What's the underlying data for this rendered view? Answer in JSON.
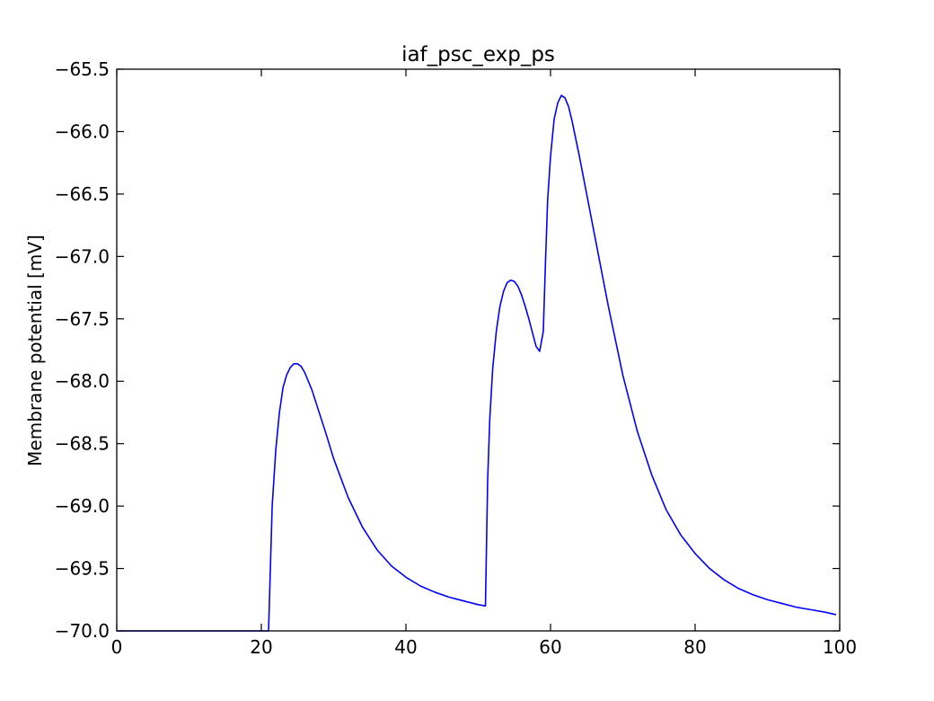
{
  "chart_data": {
    "type": "line",
    "title": "iaf_psc_exp_ps",
    "xlabel": "",
    "ylabel": "Membrane potential [mV]",
    "xlim": [
      0,
      100
    ],
    "ylim": [
      -70.0,
      -65.5
    ],
    "xticks": [
      0,
      20,
      40,
      60,
      80,
      100
    ],
    "xtick_labels": [
      "0",
      "20",
      "40",
      "60",
      "80",
      "100"
    ],
    "yticks": [
      -70.0,
      -69.5,
      -69.0,
      -68.5,
      -68.0,
      -67.5,
      -67.0,
      -66.5,
      -66.0,
      -65.5
    ],
    "ytick_labels": [
      "−70.0",
      "−69.5",
      "−69.0",
      "−68.5",
      "−68.0",
      "−67.5",
      "−67.0",
      "−66.5",
      "−66.0",
      "−65.5"
    ],
    "grid": false,
    "series": [
      {
        "color": "#0000ff",
        "x": [
          0,
          21.0,
          21.5,
          22,
          22.5,
          23,
          23.5,
          24,
          24.5,
          25,
          25.5,
          26,
          27,
          28,
          29,
          30,
          32,
          34,
          36,
          38,
          40,
          42,
          44,
          46,
          48,
          50,
          51.0,
          51.3,
          51.6,
          52,
          52.5,
          53,
          53.5,
          54,
          54.5,
          55,
          55.5,
          56,
          56.5,
          57,
          57.5,
          58,
          58.5,
          59.0,
          59.3,
          59.6,
          60,
          60.5,
          61,
          61.5,
          62,
          62.5,
          63,
          64,
          65,
          66,
          67,
          68,
          70,
          72,
          74,
          76,
          78,
          80,
          82,
          84,
          86,
          88,
          90,
          92,
          94,
          96,
          98,
          99.5
        ],
        "y": [
          -70.0,
          -70.0,
          -69.0,
          -68.55,
          -68.25,
          -68.05,
          -67.95,
          -67.89,
          -67.86,
          -67.86,
          -67.88,
          -67.93,
          -68.07,
          -68.25,
          -68.43,
          -68.62,
          -68.93,
          -69.17,
          -69.35,
          -69.48,
          -69.57,
          -69.64,
          -69.69,
          -69.73,
          -69.76,
          -69.79,
          -69.8,
          -68.8,
          -68.3,
          -67.9,
          -67.6,
          -67.4,
          -67.28,
          -67.21,
          -67.19,
          -67.2,
          -67.24,
          -67.31,
          -67.4,
          -67.5,
          -67.61,
          -67.72,
          -67.76,
          -67.6,
          -67.05,
          -66.55,
          -66.2,
          -65.9,
          -65.77,
          -65.71,
          -65.73,
          -65.8,
          -65.92,
          -66.2,
          -66.5,
          -66.8,
          -67.1,
          -67.4,
          -67.95,
          -68.4,
          -68.75,
          -69.03,
          -69.23,
          -69.38,
          -69.5,
          -69.59,
          -69.66,
          -69.71,
          -69.75,
          -69.78,
          -69.81,
          -69.83,
          -69.85,
          -69.87
        ]
      }
    ]
  }
}
